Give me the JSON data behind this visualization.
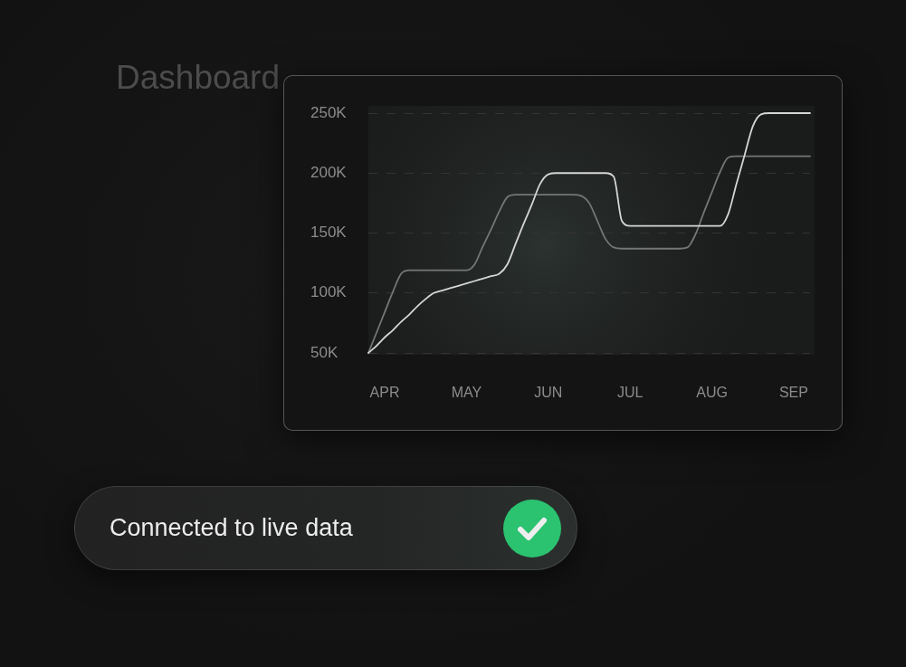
{
  "chart_data": {
    "type": "line",
    "title": "Dashboard",
    "categories": [
      null,
      null,
      "APR",
      null,
      null,
      null,
      null,
      null,
      null,
      null,
      null,
      null,
      "MAY",
      null,
      null,
      null,
      null,
      null,
      null,
      null,
      null,
      null,
      "JUN",
      null,
      null,
      null,
      null,
      null,
      null,
      null,
      null,
      null,
      "JUL",
      null,
      null,
      null,
      null,
      null,
      null,
      null,
      null,
      null,
      "AUG",
      null,
      null,
      null,
      null,
      null,
      null,
      null,
      null,
      null,
      "SEP",
      null,
      null
    ],
    "series": [
      {
        "color": "#d6d6d6",
        "values": [
          50000,
          56000,
          63000,
          69000,
          76000,
          82000,
          89000,
          95000,
          100000,
          102000,
          104000,
          106000,
          108000,
          110000,
          112000,
          114000,
          116000,
          124000,
          141000,
          158000,
          174000,
          191000,
          199000,
          200000,
          200000,
          200000,
          200000,
          200000,
          200000,
          200000,
          197000,
          160000,
          156000,
          156000,
          156000,
          156000,
          156000,
          156000,
          156000,
          156000,
          156000,
          156000,
          156000,
          156000,
          166000,
          191000,
          215000,
          239000,
          249000,
          250000,
          250000,
          250000,
          250000,
          250000,
          250000
        ]
      },
      {
        "color": "#767676",
        "values": [
          50000,
          67000,
          84000,
          101000,
          116000,
          119000,
          119000,
          119000,
          119000,
          119000,
          119000,
          119000,
          119000,
          124000,
          139000,
          153000,
          168000,
          180000,
          182000,
          182000,
          182000,
          182000,
          182000,
          182000,
          182000,
          182000,
          181000,
          175000,
          160000,
          145000,
          138000,
          137000,
          137000,
          137000,
          137000,
          137000,
          137000,
          137000,
          137000,
          138000,
          149000,
          167000,
          184000,
          201000,
          213000,
          214000,
          214000,
          214000,
          214000,
          214000,
          214000,
          214000,
          214000,
          214000,
          214000
        ]
      }
    ],
    "ylim": [
      50000,
      250000
    ],
    "yticks": [
      {
        "value": 50000,
        "label": "50K"
      },
      {
        "value": 100000,
        "label": "100K"
      },
      {
        "value": 150000,
        "label": "150K"
      },
      {
        "value": 200000,
        "label": "200K"
      },
      {
        "value": 250000,
        "label": "250K"
      }
    ],
    "grid": "y",
    "legend": false,
    "marker": "none",
    "line_style": "solid",
    "annotations": [
      "Connected to live data"
    ]
  }
}
